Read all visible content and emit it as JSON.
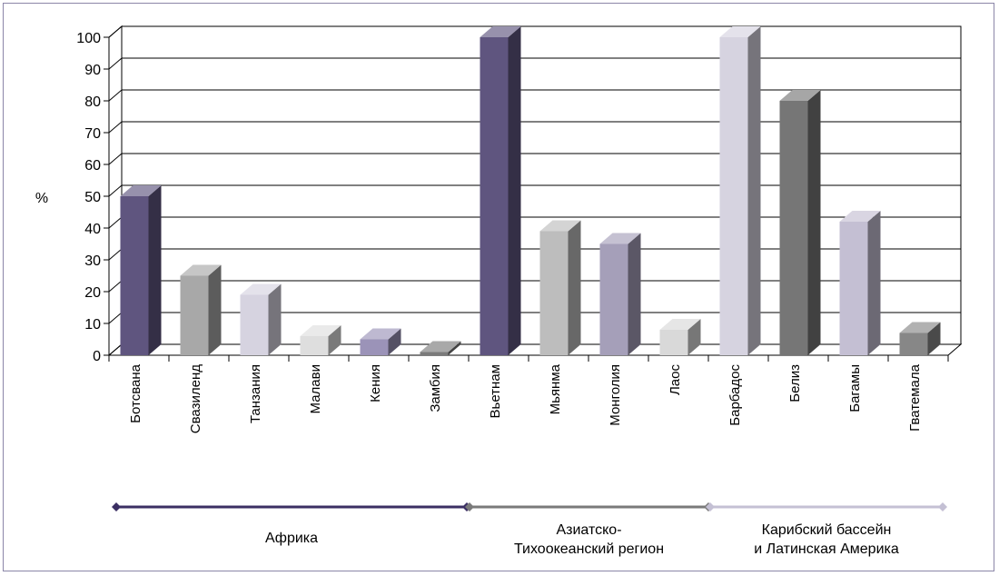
{
  "chart_data": {
    "type": "bar",
    "ylabel": "%",
    "xlabel": "",
    "title": "",
    "ylim": [
      0,
      100
    ],
    "yticks": [
      0,
      10,
      20,
      30,
      40,
      50,
      60,
      70,
      80,
      90,
      100
    ],
    "grid": true,
    "categories": [
      "Ботсвана",
      "Свазиленд",
      "Танзания",
      "Малави",
      "Кения",
      "Замбия",
      "Вьетнам",
      "Мьянма",
      "Монголия",
      "Лаос",
      "Барбадос",
      "Белиз",
      "Багамы",
      "Гватемала"
    ],
    "values": [
      50,
      25,
      19,
      6,
      5,
      1,
      100,
      39,
      35,
      8,
      100,
      80,
      42,
      7
    ],
    "bar_colors": [
      "#5f557f",
      "#a8a8a8",
      "#d6d3e0",
      "#dedede",
      "#9b93b8",
      "#7a7a7a",
      "#5f557f",
      "#bdbdbd",
      "#a59fb9",
      "#d9d9d9",
      "#d6d3e0",
      "#767676",
      "#c4bfd3",
      "#878787"
    ],
    "regions": [
      {
        "label_lines": [
          "Африка"
        ],
        "from": 0,
        "to": 5,
        "color": "#3b2f63"
      },
      {
        "label_lines": [
          "Азиатско-",
          "Тихоокеанский регион"
        ],
        "from": 6,
        "to": 9,
        "color": "#7a7a7a"
      },
      {
        "label_lines": [
          "Карибский бассейн",
          "и Латинская Америка"
        ],
        "from": 10,
        "to": 13,
        "color": "#c4c0d4"
      }
    ]
  }
}
